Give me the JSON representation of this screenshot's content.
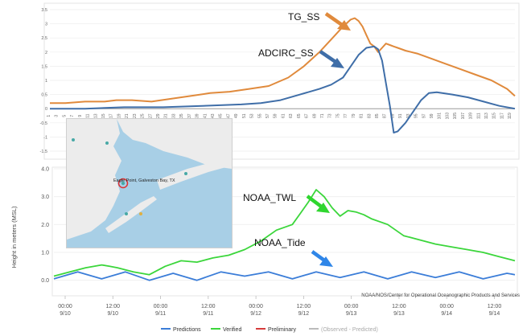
{
  "chart_data": [
    {
      "type": "line",
      "title": "",
      "xlabel": "",
      "ylabel": "",
      "ylim": [
        -1.5,
        3.5
      ],
      "yticks": [
        "3.5",
        "3",
        "2.5",
        "2",
        "1.5",
        "1",
        "0.5",
        "0",
        "-0.5",
        "-1",
        "-1.5"
      ],
      "xrange": [
        1,
        120
      ],
      "grid": true,
      "legend": "none",
      "series": [
        {
          "name": "TG_SS",
          "color": "#e08a3c",
          "x": [
            1,
            5,
            10,
            15,
            18,
            22,
            27,
            32,
            37,
            42,
            47,
            52,
            57,
            62,
            66,
            70,
            72,
            74,
            76,
            78,
            79,
            80,
            81,
            82,
            83,
            84,
            85,
            86,
            87,
            88,
            89,
            90,
            92,
            95,
            98,
            102,
            106,
            110,
            114,
            118,
            120
          ],
          "values": [
            0.2,
            0.2,
            0.25,
            0.25,
            0.3,
            0.3,
            0.25,
            0.35,
            0.45,
            0.55,
            0.6,
            0.7,
            0.8,
            1.1,
            1.5,
            2.0,
            2.3,
            2.6,
            2.9,
            3.15,
            3.2,
            3.1,
            2.9,
            2.6,
            2.3,
            2.2,
            2.0,
            2.15,
            2.3,
            2.25,
            2.2,
            2.15,
            2.05,
            1.95,
            1.8,
            1.6,
            1.4,
            1.2,
            1.0,
            0.7,
            0.45
          ]
        },
        {
          "name": "ADCIRC_SS",
          "color": "#3f6ea8",
          "x": [
            1,
            10,
            20,
            30,
            40,
            50,
            55,
            60,
            65,
            70,
            73,
            76,
            78,
            80,
            82,
            84,
            85,
            86,
            87,
            88,
            89,
            90,
            92,
            94,
            96,
            98,
            100,
            104,
            108,
            112,
            116,
            120
          ],
          "values": [
            0.0,
            0.0,
            0.05,
            0.05,
            0.1,
            0.15,
            0.2,
            0.3,
            0.5,
            0.7,
            0.85,
            1.1,
            1.5,
            1.9,
            2.15,
            2.2,
            2.1,
            1.7,
            0.9,
            0.1,
            -0.85,
            -0.8,
            -0.5,
            -0.1,
            0.3,
            0.55,
            0.58,
            0.5,
            0.4,
            0.25,
            0.1,
            0.0
          ]
        }
      ],
      "annotations": [
        {
          "text": "TG_SS",
          "color": "#e08a3c"
        },
        {
          "text": "ADCIRC_SS",
          "color": "#3f6ea8"
        }
      ]
    },
    {
      "type": "line",
      "title": "",
      "xlabel": "",
      "ylabel": "Height in meters (MSL)",
      "ylim": [
        -0.5,
        4.0
      ],
      "yticks": [
        "4.0",
        "3.0",
        "2.0",
        "1.0",
        "0.0"
      ],
      "xticks": [
        [
          "00:00",
          "9/10"
        ],
        [
          "12:00",
          "9/10"
        ],
        [
          "00:00",
          "9/11"
        ],
        [
          "12:00",
          "9/11"
        ],
        [
          "00:00",
          "9/12"
        ],
        [
          "12:00",
          "9/12"
        ],
        [
          "00:00",
          "9/13"
        ],
        [
          "12:00",
          "9/13"
        ],
        [
          "00:00",
          "9/14"
        ],
        [
          "12:00",
          "9/14"
        ]
      ],
      "xrange": [
        0,
        116
      ],
      "grid": true,
      "legend": "bottom",
      "series": [
        {
          "name": "Predictions",
          "color": "#3b7dd8",
          "x": [
            0,
            6,
            12,
            18,
            24,
            30,
            36,
            42,
            48,
            54,
            60,
            66,
            72,
            78,
            84,
            90,
            96,
            102,
            108,
            114,
            116
          ],
          "values": [
            0.05,
            0.3,
            0.05,
            0.3,
            0.0,
            0.25,
            0.0,
            0.3,
            0.15,
            0.3,
            0.05,
            0.3,
            0.1,
            0.3,
            0.05,
            0.3,
            0.1,
            0.3,
            0.05,
            0.25,
            0.2
          ]
        },
        {
          "name": "Verified",
          "color": "#3bd63b",
          "x": [
            0,
            4,
            8,
            12,
            14,
            16,
            20,
            24,
            28,
            32,
            36,
            40,
            44,
            48,
            52,
            56,
            60,
            62,
            64,
            66,
            68,
            70,
            72,
            74,
            76,
            78,
            80,
            84,
            88,
            92,
            96,
            100,
            104,
            108,
            112,
            116
          ],
          "values": [
            0.15,
            0.3,
            0.45,
            0.55,
            0.5,
            0.45,
            0.3,
            0.2,
            0.5,
            0.7,
            0.65,
            0.8,
            0.9,
            1.1,
            1.4,
            1.8,
            2.0,
            2.4,
            2.8,
            3.25,
            3.0,
            2.6,
            2.3,
            2.5,
            2.45,
            2.35,
            2.2,
            2.0,
            1.6,
            1.45,
            1.3,
            1.2,
            1.1,
            1.0,
            0.85,
            0.7
          ]
        },
        {
          "name": "Preliminary",
          "color": "#d63b3b",
          "x": [],
          "values": []
        },
        {
          "name": "(Observed - Predicted)",
          "color": "#aaaaaa",
          "x": [],
          "values": []
        }
      ],
      "annotations": [
        {
          "text": "NOAA_TWL",
          "color": "#2fd62f"
        },
        {
          "text": "NOAA_Tide",
          "color": "#2f86e8"
        }
      ],
      "credit": "NOAA/NOS/Center for Operational Oceanographic Products and Services"
    }
  ],
  "map_inset": {
    "label": "Eagle Point, Galveston Bay, TX",
    "water_color": "#a8cfe6",
    "land_color": "#ececec"
  }
}
